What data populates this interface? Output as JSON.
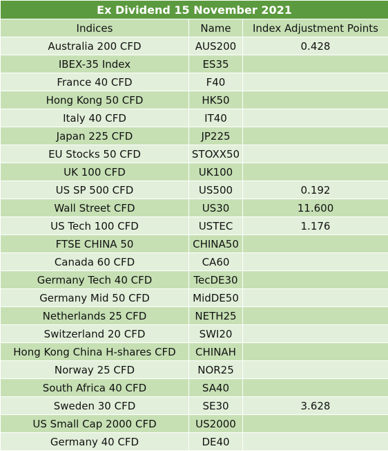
{
  "title": "Ex Dividend 15 November 2021",
  "columns": [
    "Indices",
    "Name",
    "Index Adjustment Points"
  ],
  "rows": [
    {
      "index": "Australia 200 CFD",
      "name": "AUS200",
      "points": "0.428"
    },
    {
      "index": "IBEX-35 Index",
      "name": "ES35",
      "points": ""
    },
    {
      "index": "France 40 CFD",
      "name": "F40",
      "points": ""
    },
    {
      "index": "Hong Kong 50 CFD",
      "name": "HK50",
      "points": ""
    },
    {
      "index": "Italy 40 CFD",
      "name": "IT40",
      "points": ""
    },
    {
      "index": "Japan 225 CFD",
      "name": "JP225",
      "points": ""
    },
    {
      "index": "EU Stocks 50 CFD",
      "name": "STOXX50",
      "points": ""
    },
    {
      "index": "UK 100 CFD",
      "name": "UK100",
      "points": ""
    },
    {
      "index": "US SP 500 CFD",
      "name": "US500",
      "points": "0.192"
    },
    {
      "index": "Wall Street CFD",
      "name": "US30",
      "points": "11.600"
    },
    {
      "index": "US Tech 100 CFD",
      "name": "USTEC",
      "points": "1.176"
    },
    {
      "index": "FTSE CHINA 50",
      "name": "CHINA50",
      "points": ""
    },
    {
      "index": "Canada 60 CFD",
      "name": "CA60",
      "points": ""
    },
    {
      "index": "Germany Tech 40 CFD",
      "name": "TecDE30",
      "points": ""
    },
    {
      "index": "Germany Mid 50 CFD",
      "name": "MidDE50",
      "points": ""
    },
    {
      "index": "Netherlands 25 CFD",
      "name": "NETH25",
      "points": ""
    },
    {
      "index": "Switzerland 20 CFD",
      "name": "SWI20",
      "points": ""
    },
    {
      "index": "Hong Kong China H-shares CFD",
      "name": "CHINAH",
      "points": ""
    },
    {
      "index": "Norway 25 CFD",
      "name": "NOR25",
      "points": ""
    },
    {
      "index": "South Africa 40 CFD",
      "name": "SA40",
      "points": ""
    },
    {
      "index": "Sweden 30 CFD",
      "name": "SE30",
      "points": "3.628"
    },
    {
      "index": "US Small Cap 2000 CFD",
      "name": "US2000",
      "points": ""
    },
    {
      "index": "Germany 40 CFD",
      "name": "DE40",
      "points": ""
    }
  ],
  "colors": {
    "title_bg": "#5b9a3e",
    "row_dark": "#c6e0b4",
    "row_light": "#e2efda"
  }
}
